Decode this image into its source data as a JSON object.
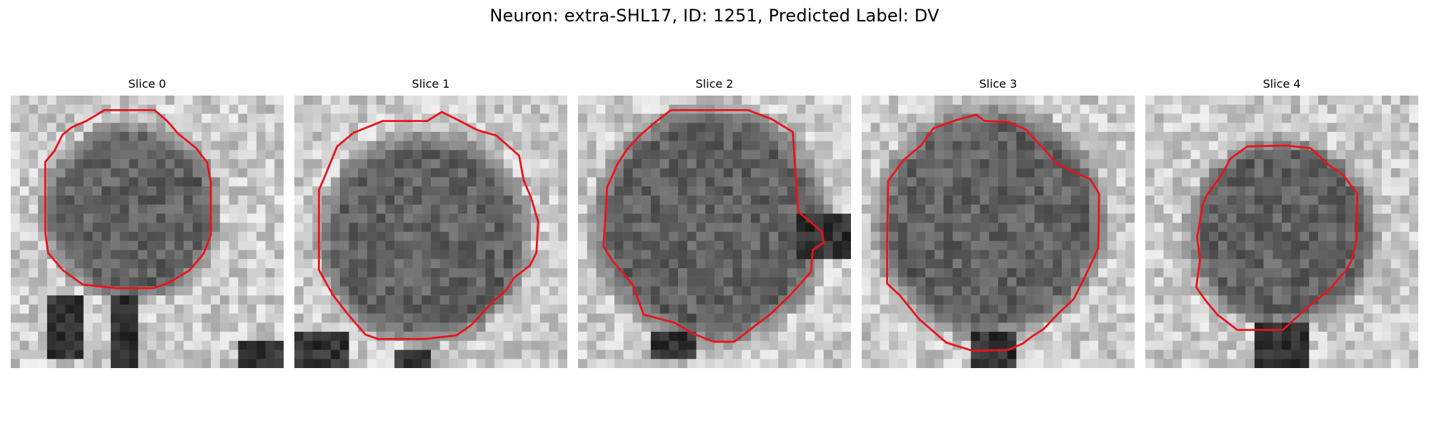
{
  "figure": {
    "title": "Neuron: extra-SHL17, ID: 1251, Predicted Label: DV",
    "contour_color": "#e8141c",
    "colormap": "gray",
    "panels": [
      {
        "title": "Slice 0"
      },
      {
        "title": "Slice 1"
      },
      {
        "title": "Slice 2"
      },
      {
        "title": "Slice 3"
      },
      {
        "title": "Slice 4"
      }
    ]
  }
}
